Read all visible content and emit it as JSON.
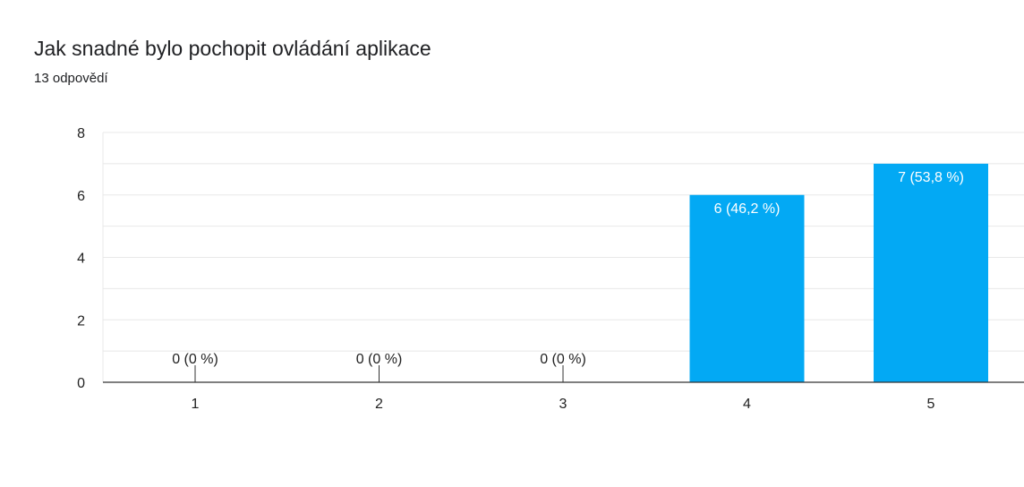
{
  "header": {
    "title": "Jak snadné bylo pochopit ovládání aplikace",
    "response_count": "13 odpovědí"
  },
  "colors": {
    "bar": "#03a9f4",
    "grid": "#e8e8e8",
    "axis": "#333333",
    "label_dark": "#222222",
    "label_light": "#ffffff"
  },
  "chart_data": {
    "type": "bar",
    "categories": [
      "1",
      "2",
      "3",
      "4",
      "5"
    ],
    "values": [
      0,
      0,
      0,
      6,
      7
    ],
    "data_labels": [
      "0 (0 %)",
      "0 (0 %)",
      "0 (0 %)",
      "6 (46,2 %)",
      "7 (53,8 %)"
    ],
    "y_ticks": [
      "0",
      "2",
      "4",
      "6",
      "8"
    ],
    "ylim": [
      0,
      8
    ],
    "grid": true,
    "legend": "none"
  }
}
